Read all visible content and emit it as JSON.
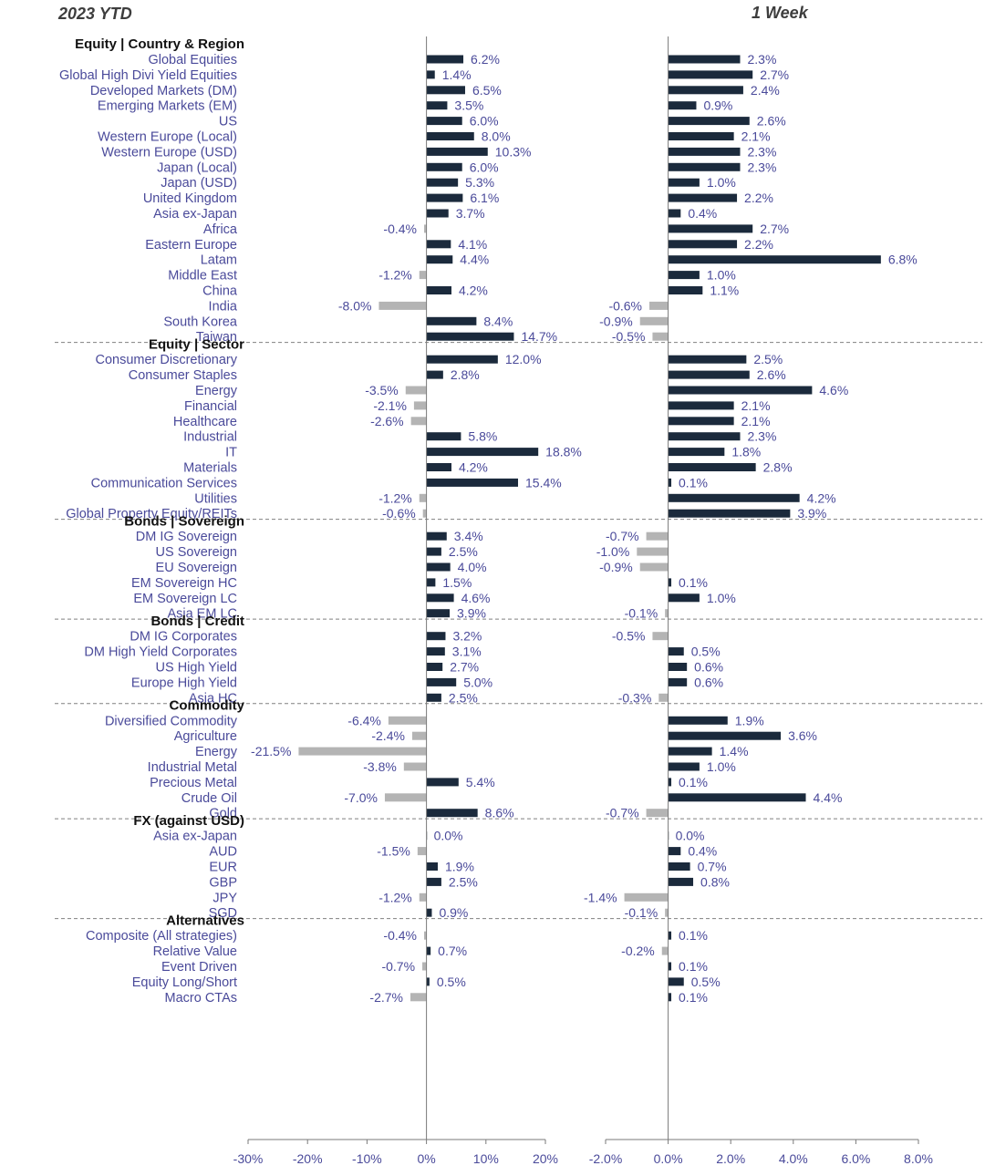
{
  "colors": {
    "positive": "#1b2a3c",
    "negative": "#b4b4b4",
    "text": "#4a4a9a",
    "separator": "#808080"
  },
  "chart_data": {
    "type": "bar",
    "orientation": "horizontal",
    "panels": [
      {
        "key": "ytd",
        "title": "2023 YTD",
        "xlim": [
          -30,
          20
        ],
        "ticks": [
          -30,
          -20,
          -10,
          0,
          10,
          20
        ],
        "tick_labels": [
          "-30%",
          "-20%",
          "-10%",
          "0%",
          "10%",
          "20%"
        ]
      },
      {
        "key": "week",
        "title": "1 Week",
        "xlim": [
          -2,
          8
        ],
        "ticks": [
          -2,
          0,
          2,
          4,
          6,
          8
        ],
        "tick_labels": [
          "-2.0%",
          "0.0%",
          "2.0%",
          "4.0%",
          "6.0%",
          "8.0%"
        ]
      }
    ],
    "groups": [
      {
        "title": "Equity | Country & Region",
        "items": [
          {
            "label": "Global Equities",
            "ytd": 6.2,
            "week": 2.3
          },
          {
            "label": "Global High Divi Yield Equities",
            "ytd": 1.4,
            "week": 2.7
          },
          {
            "label": "Developed Markets (DM)",
            "ytd": 6.5,
            "week": 2.4
          },
          {
            "label": "Emerging Markets (EM)",
            "ytd": 3.5,
            "week": 0.9
          },
          {
            "label": "US",
            "ytd": 6.0,
            "week": 2.6
          },
          {
            "label": "Western Europe (Local)",
            "ytd": 8.0,
            "week": 2.1
          },
          {
            "label": "Western Europe (USD)",
            "ytd": 10.3,
            "week": 2.3
          },
          {
            "label": "Japan (Local)",
            "ytd": 6.0,
            "week": 2.3
          },
          {
            "label": "Japan (USD)",
            "ytd": 5.3,
            "week": 1.0
          },
          {
            "label": "United Kingdom",
            "ytd": 6.1,
            "week": 2.2
          },
          {
            "label": "Asia ex-Japan",
            "ytd": 3.7,
            "week": 0.4
          },
          {
            "label": "Africa",
            "ytd": -0.4,
            "week": 2.7
          },
          {
            "label": "Eastern Europe",
            "ytd": 4.1,
            "week": 2.2
          },
          {
            "label": "Latam",
            "ytd": 4.4,
            "week": 6.8
          },
          {
            "label": "Middle East",
            "ytd": -1.2,
            "week": 1.0
          },
          {
            "label": "China",
            "ytd": 4.2,
            "week": 1.1
          },
          {
            "label": "India",
            "ytd": -8.0,
            "week": -0.6
          },
          {
            "label": "South Korea",
            "ytd": 8.4,
            "week": -0.9
          },
          {
            "label": "Taiwan",
            "ytd": 14.7,
            "week": -0.5
          }
        ]
      },
      {
        "title": "Equity | Sector",
        "items": [
          {
            "label": "Consumer Discretionary",
            "ytd": 12.0,
            "week": 2.5
          },
          {
            "label": "Consumer Staples",
            "ytd": 2.8,
            "week": 2.6
          },
          {
            "label": "Energy",
            "ytd": -3.5,
            "week": 4.6
          },
          {
            "label": "Financial",
            "ytd": -2.1,
            "week": 2.1
          },
          {
            "label": "Healthcare",
            "ytd": -2.6,
            "week": 2.1
          },
          {
            "label": "Industrial",
            "ytd": 5.8,
            "week": 2.3
          },
          {
            "label": "IT",
            "ytd": 18.8,
            "week": 1.8
          },
          {
            "label": "Materials",
            "ytd": 4.2,
            "week": 2.8
          },
          {
            "label": "Communication Services",
            "ytd": 15.4,
            "week": 0.1
          },
          {
            "label": "Utilities",
            "ytd": -1.2,
            "week": 4.2
          },
          {
            "label": "Global Property Equity/REITs",
            "ytd": -0.6,
            "week": 3.9
          }
        ]
      },
      {
        "title": "Bonds | Sovereign",
        "items": [
          {
            "label": "DM IG Sovereign",
            "ytd": 3.4,
            "week": -0.7
          },
          {
            "label": "US Sovereign",
            "ytd": 2.5,
            "week": -1.0
          },
          {
            "label": "EU Sovereign",
            "ytd": 4.0,
            "week": -0.9
          },
          {
            "label": "EM Sovereign HC",
            "ytd": 1.5,
            "week": 0.1
          },
          {
            "label": "EM Sovereign LC",
            "ytd": 4.6,
            "week": 1.0
          },
          {
            "label": "Asia EM LC",
            "ytd": 3.9,
            "week": -0.1
          }
        ]
      },
      {
        "title": "Bonds | Credit",
        "items": [
          {
            "label": "DM IG Corporates",
            "ytd": 3.2,
            "week": -0.5
          },
          {
            "label": "DM High Yield Corporates",
            "ytd": 3.1,
            "week": 0.5
          },
          {
            "label": "US High Yield",
            "ytd": 2.7,
            "week": 0.6
          },
          {
            "label": "Europe High Yield",
            "ytd": 5.0,
            "week": 0.6
          },
          {
            "label": "Asia HC",
            "ytd": 2.5,
            "week": -0.3
          }
        ]
      },
      {
        "title": "Commodity",
        "items": [
          {
            "label": "Diversified Commodity",
            "ytd": -6.4,
            "week": 1.9
          },
          {
            "label": "Agriculture",
            "ytd": -2.4,
            "week": 3.6
          },
          {
            "label": "Energy",
            "ytd": -21.5,
            "week": 1.4
          },
          {
            "label": "Industrial Metal",
            "ytd": -3.8,
            "week": 1.0
          },
          {
            "label": "Precious Metal",
            "ytd": 5.4,
            "week": 0.1
          },
          {
            "label": "Crude Oil",
            "ytd": -7.0,
            "week": 4.4
          },
          {
            "label": "Gold",
            "ytd": 8.6,
            "week": -0.7
          }
        ]
      },
      {
        "title": "FX (against USD)",
        "items": [
          {
            "label": "Asia ex-Japan",
            "ytd": 0.0,
            "week": 0.0
          },
          {
            "label": "AUD",
            "ytd": -1.5,
            "week": 0.4
          },
          {
            "label": "EUR",
            "ytd": 1.9,
            "week": 0.7
          },
          {
            "label": "GBP",
            "ytd": 2.5,
            "week": 0.8
          },
          {
            "label": "JPY",
            "ytd": -1.2,
            "week": -1.4
          },
          {
            "label": "SGD",
            "ytd": 0.9,
            "week": -0.1
          }
        ]
      },
      {
        "title": "Alternatives",
        "items": [
          {
            "label": "Composite (All strategies)",
            "ytd": -0.4,
            "week": 0.1
          },
          {
            "label": "Relative Value",
            "ytd": 0.7,
            "week": -0.2
          },
          {
            "label": "Event Driven",
            "ytd": -0.7,
            "week": 0.1
          },
          {
            "label": "Equity Long/Short",
            "ytd": 0.5,
            "week": 0.5
          },
          {
            "label": "Macro CTAs",
            "ytd": -2.7,
            "week": 0.1
          }
        ]
      }
    ]
  }
}
